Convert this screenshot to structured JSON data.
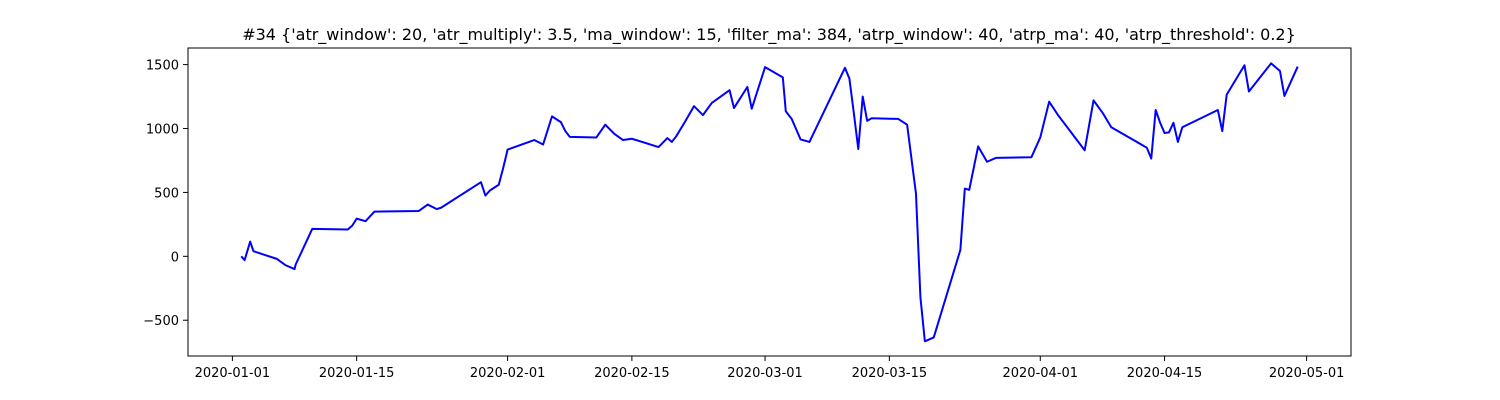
{
  "chart_data": {
    "type": "line",
    "title": "#34 {'atr_window': 20, 'atr_multiply': 3.5, 'ma_window': 15, 'filter_ma': 384, 'atrp_window': 40, 'atrp_ma': 40, 'atrp_threshold': 0.2}",
    "xlabel": "",
    "ylabel": "",
    "xlim": [
      "2019-12-27",
      "2020-05-06"
    ],
    "ylim": [
      -780,
      1630
    ],
    "grid": false,
    "x_ticks": [
      "2020-01-01",
      "2020-01-15",
      "2020-02-01",
      "2020-02-15",
      "2020-03-01",
      "2020-03-15",
      "2020-04-01",
      "2020-04-15",
      "2020-05-01"
    ],
    "y_ticks": [
      -500,
      0,
      500,
      1000,
      1500
    ],
    "series": [
      {
        "color": "#0000ff",
        "x": [
          "2020-01-02",
          "2020-01-02T09:00",
          "2020-01-03",
          "2020-01-03T09:00",
          "2020-01-06",
          "2020-01-07",
          "2020-01-08",
          "2020-01-08T03:00",
          "2020-01-10",
          "2020-01-14",
          "2020-01-14T12:00",
          "2020-01-15",
          "2020-01-16",
          "2020-01-17",
          "2020-01-22",
          "2020-01-23",
          "2020-01-24",
          "2020-01-24T12:00",
          "2020-01-29",
          "2020-01-29T12:00",
          "2020-01-30",
          "2020-01-31",
          "2020-01-31T12:00",
          "2020-02-01",
          "2020-02-04",
          "2020-02-05",
          "2020-02-06",
          "2020-02-07",
          "2020-02-07T12:00",
          "2020-02-08",
          "2020-02-11",
          "2020-02-12",
          "2020-02-13",
          "2020-02-14",
          "2020-02-15",
          "2020-02-18",
          "2020-02-19",
          "2020-02-19T12:00",
          "2020-02-20",
          "2020-02-21",
          "2020-02-22",
          "2020-02-23",
          "2020-02-24",
          "2020-02-26",
          "2020-02-26T12:00",
          "2020-02-28",
          "2020-02-28T12:00",
          "2020-03-01",
          "2020-03-03",
          "2020-03-03T08:00",
          "2020-03-04",
          "2020-03-05",
          "2020-03-06",
          "2020-03-10",
          "2020-03-10T12:00",
          "2020-03-11",
          "2020-03-11T12:00",
          "2020-03-12",
          "2020-03-12T12:00",
          "2020-03-13",
          "2020-03-16",
          "2020-03-17",
          "2020-03-18",
          "2020-03-18T12:00",
          "2020-03-19",
          "2020-03-20",
          "2020-03-23",
          "2020-03-23T12:00",
          "2020-03-24",
          "2020-03-25",
          "2020-03-26",
          "2020-03-27",
          "2020-03-31",
          "2020-04-01",
          "2020-04-02",
          "2020-04-03",
          "2020-04-06",
          "2020-04-07",
          "2020-04-08",
          "2020-04-09",
          "2020-04-13",
          "2020-04-13T12:00",
          "2020-04-14",
          "2020-04-14T12:00",
          "2020-04-15",
          "2020-04-15T12:00",
          "2020-04-16",
          "2020-04-16T12:00",
          "2020-04-17",
          "2020-04-21",
          "2020-04-21T12:00",
          "2020-04-22",
          "2020-04-24",
          "2020-04-24T12:00",
          "2020-04-27",
          "2020-04-28",
          "2020-04-28T12:00",
          "2020-04-30"
        ],
        "y": [
          0,
          -30,
          115,
          40,
          -20,
          -70,
          -100,
          -65,
          215,
          210,
          240,
          295,
          275,
          350,
          355,
          405,
          370,
          380,
          580,
          475,
          515,
          560,
          690,
          835,
          910,
          875,
          1095,
          1050,
          980,
          935,
          930,
          1030,
          960,
          910,
          920,
          855,
          925,
          895,
          940,
          1055,
          1175,
          1105,
          1200,
          1300,
          1160,
          1325,
          1155,
          1480,
          1400,
          1135,
          1075,
          915,
          895,
          1475,
          1390,
          1120,
          840,
          1250,
          1060,
          1080,
          1075,
          1030,
          490,
          -320,
          -665,
          -635,
          50,
          530,
          520,
          860,
          740,
          770,
          775,
          930,
          1210,
          1105,
          830,
          1220,
          1125,
          1010,
          850,
          765,
          1145,
          1045,
          965,
          970,
          1045,
          895,
          1010,
          1145,
          980,
          1265,
          1495,
          1290,
          1510,
          1450,
          1255,
          1485
        ]
      }
    ]
  }
}
